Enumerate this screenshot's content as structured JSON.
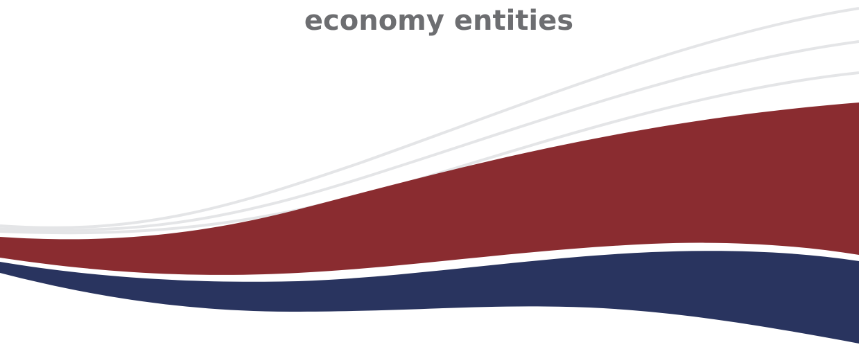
{
  "heading": "economy entities"
}
